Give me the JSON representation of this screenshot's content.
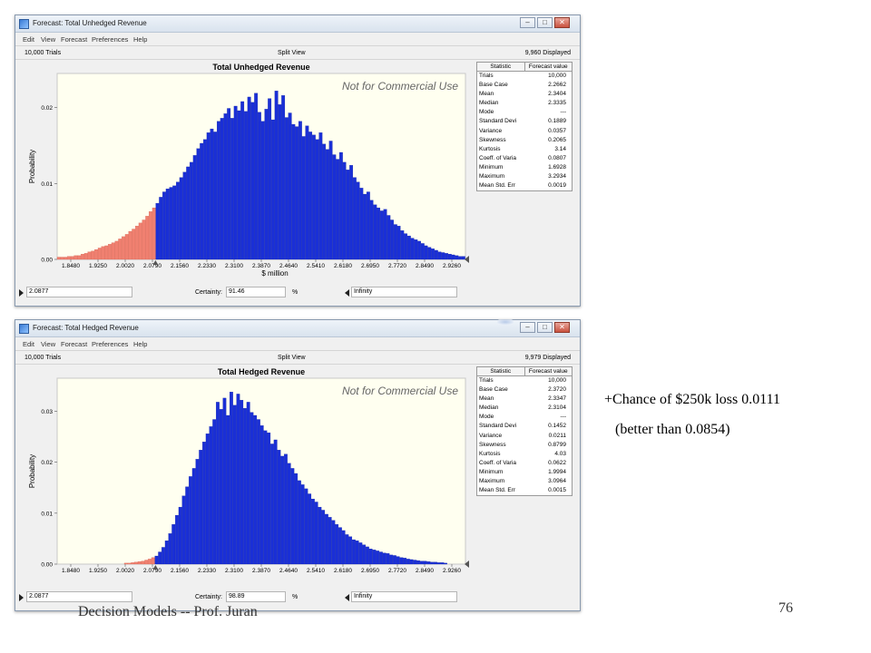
{
  "windows": [
    {
      "title": "Forecast: Total Unhedged Revenue",
      "menu": [
        "Edit",
        "View",
        "Forecast",
        "Preferences",
        "Help"
      ],
      "trials_label": "10,000 Trials",
      "view_label": "Split View",
      "displayed_label": "9,960 Displayed",
      "watermark": "Not for Commercial Use",
      "stats_header": [
        "Statistic",
        "Forecast value"
      ],
      "stats": [
        {
          "name": "Trials",
          "value": "10,000"
        },
        {
          "name": "Base Case",
          "value": "2.2662"
        },
        {
          "name": "Mean",
          "value": "2.3404"
        },
        {
          "name": "Median",
          "value": "2.3335"
        },
        {
          "name": "Mode",
          "value": "---"
        },
        {
          "name": "Standard Devi",
          "value": "0.1889"
        },
        {
          "name": "Variance",
          "value": "0.0357"
        },
        {
          "name": "Skewness",
          "value": "0.2065"
        },
        {
          "name": "Kurtosis",
          "value": "3.14"
        },
        {
          "name": "Coeff. of Varia",
          "value": "0.0807"
        },
        {
          "name": "Minimum",
          "value": "1.6928"
        },
        {
          "name": "Maximum",
          "value": "3.2934"
        },
        {
          "name": "Mean Std. Err",
          "value": "0.0019"
        }
      ],
      "left_value": "2.0877",
      "certainty_label": "Certainty:",
      "certainty_value": "91.46",
      "certainty_unit": "%",
      "right_value": "Infinity",
      "colors": {
        "shaded": "#f08070",
        "bars": "#1a2fd6",
        "plot_bg": "#fffff0"
      },
      "chart_data": {
        "type": "bar",
        "title": "Total Unhedged Revenue",
        "xlabel": "$ million",
        "ylabel": "Probability",
        "x_ticks": [
          "1.8480",
          "1.9250",
          "2.0020",
          "2.0790",
          "2.1560",
          "2.2330",
          "2.3100",
          "2.3870",
          "2.4640",
          "2.5410",
          "2.6180",
          "2.6950",
          "2.7720",
          "2.8490",
          "2.9260"
        ],
        "y_ticks": [
          "0.00",
          "0.01",
          "0.02"
        ],
        "ylim": [
          0,
          0.0245
        ],
        "xlim": [
          1.8095,
          2.9645
        ],
        "bin_start": 1.8095,
        "bin_width": 0.00962,
        "threshold": 2.0877,
        "values": [
          0.0003,
          0.0003,
          0.0003,
          0.0004,
          0.0004,
          0.0005,
          0.0005,
          0.0007,
          0.0008,
          0.001,
          0.0011,
          0.0013,
          0.0015,
          0.0017,
          0.0018,
          0.002,
          0.0022,
          0.0024,
          0.0027,
          0.003,
          0.0033,
          0.0037,
          0.004,
          0.0044,
          0.0048,
          0.0052,
          0.0057,
          0.0063,
          0.0068,
          0.0074,
          0.0082,
          0.0089,
          0.0093,
          0.0095,
          0.0097,
          0.0102,
          0.0108,
          0.0115,
          0.0122,
          0.0128,
          0.0137,
          0.0146,
          0.0153,
          0.0158,
          0.0167,
          0.0172,
          0.0168,
          0.0182,
          0.0186,
          0.0192,
          0.0199,
          0.0186,
          0.0202,
          0.0196,
          0.0208,
          0.0195,
          0.0214,
          0.0207,
          0.0219,
          0.0194,
          0.0182,
          0.0198,
          0.0212,
          0.0184,
          0.0222,
          0.0204,
          0.0216,
          0.0187,
          0.0193,
          0.0178,
          0.0175,
          0.0182,
          0.0162,
          0.0176,
          0.0168,
          0.0164,
          0.0158,
          0.0167,
          0.0152,
          0.0145,
          0.0156,
          0.0138,
          0.0132,
          0.0141,
          0.0128,
          0.0118,
          0.0124,
          0.0108,
          0.0102,
          0.0094,
          0.0086,
          0.0089,
          0.0078,
          0.0072,
          0.0068,
          0.0064,
          0.0066,
          0.0058,
          0.0052,
          0.0046,
          0.0044,
          0.0038,
          0.0034,
          0.0031,
          0.0028,
          0.0026,
          0.0024,
          0.0021,
          0.0018,
          0.0016,
          0.0014,
          0.0012,
          0.001,
          0.0009,
          0.0008,
          0.0007,
          0.0006,
          0.0005,
          0.0004,
          0.0004
        ]
      }
    },
    {
      "title": "Forecast: Total Hedged Revenue",
      "menu": [
        "Edit",
        "View",
        "Forecast",
        "Preferences",
        "Help"
      ],
      "trials_label": "10,000 Trials",
      "view_label": "Split View",
      "displayed_label": "9,979 Displayed",
      "watermark": "Not for Commercial Use",
      "stats_header": [
        "Statistic",
        "Forecast value"
      ],
      "stats": [
        {
          "name": "Trials",
          "value": "10,000"
        },
        {
          "name": "Base Case",
          "value": "2.3720"
        },
        {
          "name": "Mean",
          "value": "2.3347"
        },
        {
          "name": "Median",
          "value": "2.3104"
        },
        {
          "name": "Mode",
          "value": "---"
        },
        {
          "name": "Standard Devi",
          "value": "0.1452"
        },
        {
          "name": "Variance",
          "value": "0.0211"
        },
        {
          "name": "Skewness",
          "value": "0.8799"
        },
        {
          "name": "Kurtosis",
          "value": "4.03"
        },
        {
          "name": "Coeff. of Varia",
          "value": "0.0622"
        },
        {
          "name": "Minimum",
          "value": "1.9994"
        },
        {
          "name": "Maximum",
          "value": "3.0964"
        },
        {
          "name": "Mean Std. Err",
          "value": "0.0015"
        }
      ],
      "left_value": "2.0877",
      "certainty_label": "Certainty:",
      "certainty_value": "98.89",
      "certainty_unit": "%",
      "right_value": "Infinity",
      "colors": {
        "shaded": "#f08070",
        "bars": "#1a2fd6",
        "plot_bg": "#fffff0"
      },
      "chart_data": {
        "type": "bar",
        "title": "Total Hedged Revenue",
        "xlabel": "",
        "ylabel": "Probability",
        "x_ticks": [
          "1.8480",
          "1.9250",
          "2.0020",
          "2.0790",
          "2.1560",
          "2.2330",
          "2.3100",
          "2.3870",
          "2.4640",
          "2.5410",
          "2.6180",
          "2.6950",
          "2.7720",
          "2.8490",
          "2.9260"
        ],
        "y_ticks": [
          "0.00",
          "0.01",
          "0.02",
          "0.03"
        ],
        "ylim": [
          0,
          0.0365
        ],
        "xlim": [
          1.8095,
          2.9645
        ],
        "bin_start": 1.9994,
        "bin_width": 0.00962,
        "threshold": 2.0877,
        "values": [
          0.0002,
          0.0002,
          0.0003,
          0.0004,
          0.0005,
          0.0006,
          0.0008,
          0.001,
          0.0013,
          0.0016,
          0.0024,
          0.0033,
          0.0046,
          0.006,
          0.0078,
          0.0096,
          0.0112,
          0.0134,
          0.0152,
          0.0172,
          0.0188,
          0.0206,
          0.0224,
          0.024,
          0.0256,
          0.027,
          0.0284,
          0.0318,
          0.0304,
          0.0326,
          0.0292,
          0.0338,
          0.0312,
          0.0334,
          0.0322,
          0.0306,
          0.0318,
          0.0298,
          0.0292,
          0.0284,
          0.0272,
          0.0262,
          0.0258,
          0.0236,
          0.0244,
          0.0224,
          0.0212,
          0.0216,
          0.0198,
          0.0188,
          0.0178,
          0.0164,
          0.0156,
          0.0148,
          0.0138,
          0.0128,
          0.0122,
          0.0112,
          0.0106,
          0.0098,
          0.0092,
          0.0086,
          0.0078,
          0.0072,
          0.0066,
          0.0058,
          0.0054,
          0.0048,
          0.0046,
          0.0042,
          0.0038,
          0.0034,
          0.003,
          0.0028,
          0.0026,
          0.0024,
          0.0022,
          0.0021,
          0.0018,
          0.0017,
          0.0015,
          0.0013,
          0.0012,
          0.001,
          0.0009,
          0.0008,
          0.0007,
          0.0006,
          0.0006,
          0.0005,
          0.0004,
          0.0004,
          0.0003,
          0.0003,
          0.0002
        ]
      }
    }
  ],
  "side_notes": {
    "line1": "+Chance of $250k loss 0.0111",
    "line2": "(better than 0.0854)"
  },
  "footer": {
    "text": "Decision Models -- Prof. Juran",
    "page_number": "76"
  }
}
